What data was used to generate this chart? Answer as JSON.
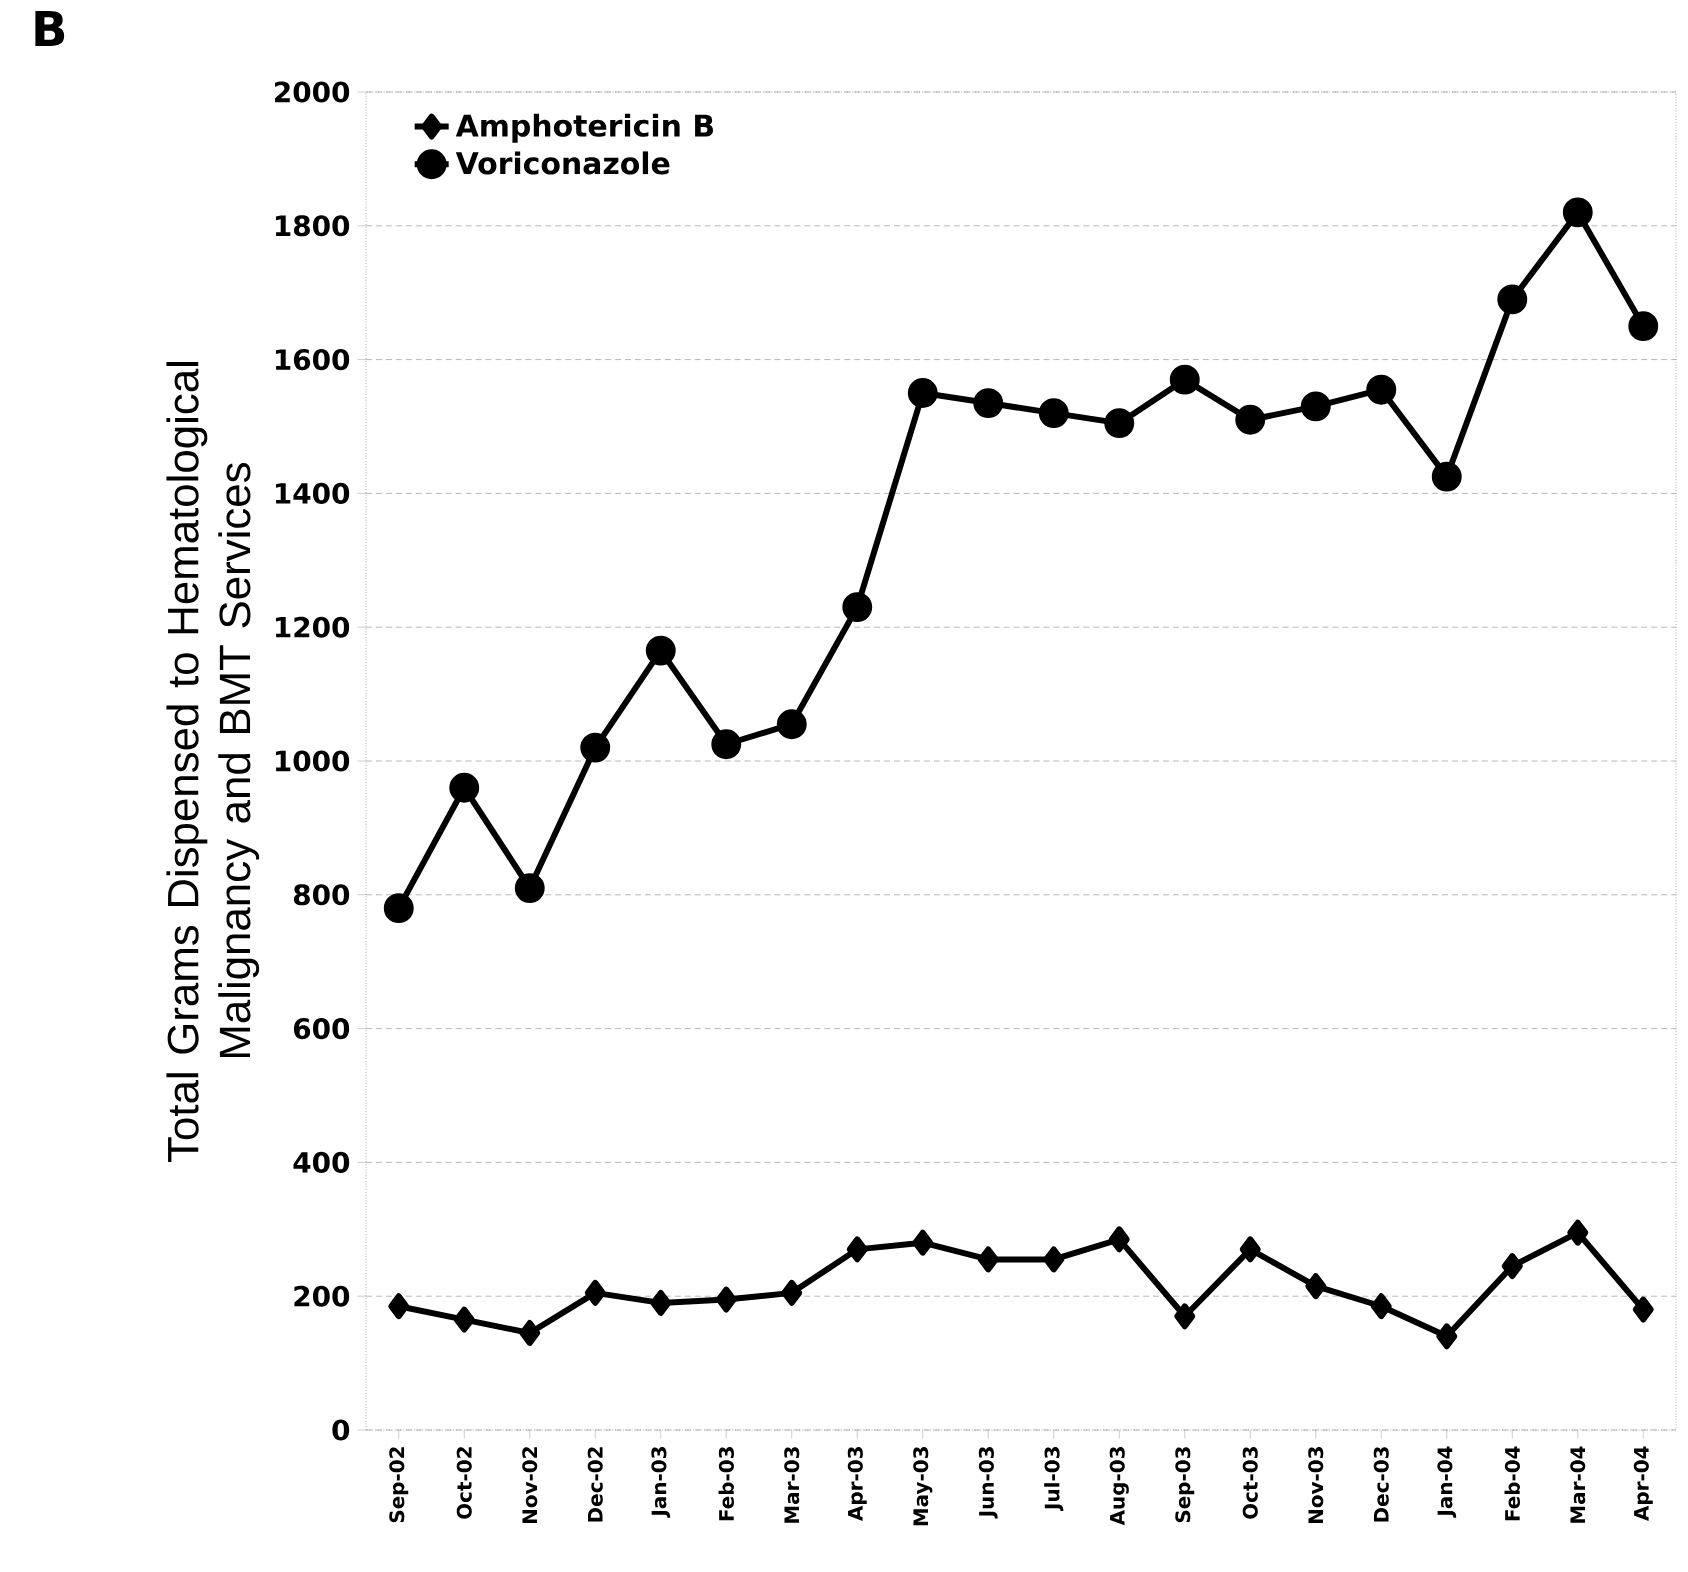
{
  "chart_data": {
    "type": "line",
    "ylabel": "Total Grams Dispensed to Hematological Malignancy and BMT Services",
    "annotations": [
      "B"
    ],
    "categories": [
      "Sep-02",
      "Oct-02",
      "Nov-02",
      "Dec-02",
      "Jan-03",
      "Feb-03",
      "Mar-03",
      "Apr-03",
      "May-03",
      "Jun-03",
      "Jul-03",
      "Aug-03",
      "Sep-03",
      "Oct-03",
      "Nov-03",
      "Dec-03",
      "Jan-04",
      "Feb-04",
      "Mar-04",
      "Apr-04"
    ],
    "series": [
      {
        "name": "Amphotericin B",
        "color": "#000000",
        "marker": "diamond",
        "values": [
          185,
          165,
          145,
          205,
          190,
          195,
          205,
          270,
          280,
          255,
          255,
          285,
          170,
          270,
          215,
          185,
          140,
          245,
          295,
          180
        ]
      },
      {
        "name": "Voriconazole",
        "color": "#000000",
        "marker": "circle",
        "values": [
          780,
          960,
          810,
          1020,
          1165,
          1025,
          1055,
          1230,
          1550,
          1535,
          1520,
          1505,
          1570,
          1510,
          1530,
          1555,
          1425,
          1690,
          1820,
          1650
        ]
      }
    ],
    "ylim": [
      0,
      2000
    ],
    "yticks": [
      0,
      200,
      400,
      600,
      800,
      1000,
      1200,
      1400,
      1600,
      1800,
      2000
    ],
    "grid": "y",
    "legend": "top left",
    "line_style": "solid"
  }
}
